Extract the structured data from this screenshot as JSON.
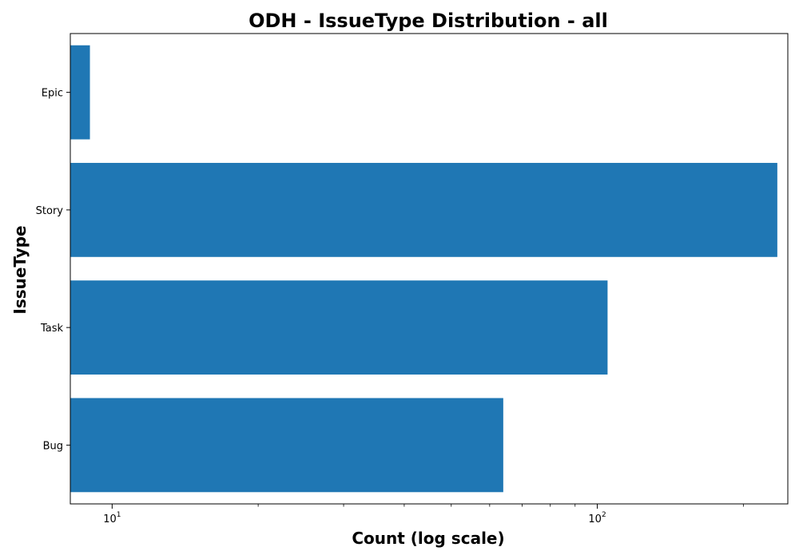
{
  "chart_data": {
    "type": "bar",
    "orientation": "horizontal",
    "title": "ODH - IssueType Distribution - all",
    "xlabel": "Count (log scale)",
    "ylabel": "IssueType",
    "x_scale": "log",
    "xlim": [
      8.2,
      247
    ],
    "categories": [
      "Epic",
      "Story",
      "Task",
      "Bug"
    ],
    "values": [
      9,
      235,
      105,
      64
    ],
    "major_ticks": [
      {
        "value": 10,
        "base": "10",
        "exponent": "1"
      },
      {
        "value": 100,
        "base": "10",
        "exponent": "2"
      }
    ],
    "minor_ticks": [
      20,
      30,
      40,
      50,
      60,
      70,
      80,
      90,
      200
    ],
    "bar_color": "#1f77b4",
    "grid": false,
    "legend": "none"
  }
}
